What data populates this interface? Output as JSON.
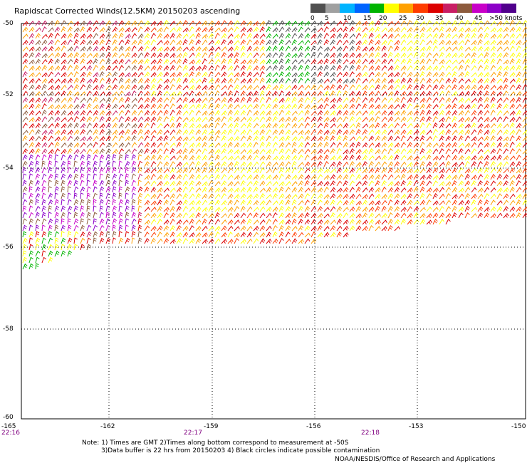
{
  "title": "Rapidscat Corrected Winds(12.5KM) 20150203 ascending",
  "speed_scale": {
    "labels": [
      "0",
      "5",
      "10",
      "15",
      "20",
      "25",
      "30",
      "35",
      "40",
      "45",
      ">50 knots"
    ],
    "colors": [
      "#505050",
      "#a0a0a0",
      "#00b4ff",
      "#0064ff",
      "#00b400",
      "#ffff00",
      "#ffa000",
      "#ff3c00",
      "#dc0000",
      "#c81e64",
      "#8c5a3c",
      "#c800c8",
      "#8c00c8",
      "#50008c"
    ]
  },
  "map": {
    "lat_range": [
      -60,
      -50
    ],
    "lon_range": [
      -165,
      -150
    ],
    "lat_labels": [
      "-50",
      "-52",
      "-54",
      "-56",
      "-58",
      "-60"
    ],
    "lon_labels": [
      "-165",
      "-162",
      "-159",
      "-156",
      "-153",
      "-150"
    ],
    "time_labels": [
      "22:16",
      "22:17",
      "22:18"
    ]
  },
  "notes": {
    "line1": "Note: 1) Times are GMT 2)Times along bottom correspond to measurement at -50S",
    "line2": "3)Data buffer is 22 hrs from 20150203 4) Black circles indicate possible contamination"
  },
  "credit": "NOAA/NESDIS/Office of Research and Applications"
}
